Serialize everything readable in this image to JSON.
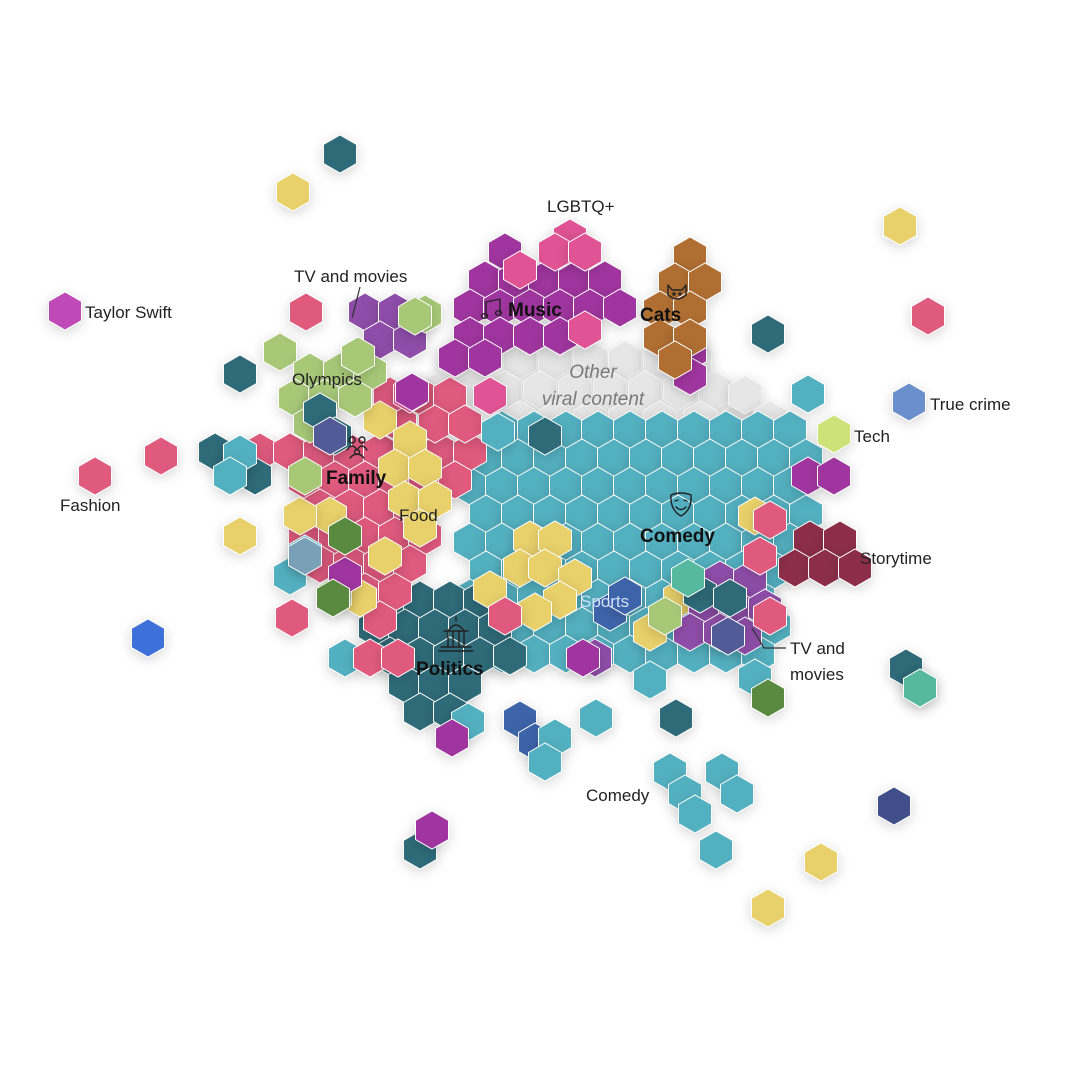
{
  "labels": {
    "lgbtq": "LGBTQ+",
    "tv_movies_top": "TV and movies",
    "music": "Music",
    "cats": "Cats",
    "taylor_swift": "Taylor Swift",
    "olympics": "Olympics",
    "other_line1": "Other",
    "other_line2": "viral content",
    "true_crime": "True crime",
    "tech": "Tech",
    "family": "Family",
    "fashion": "Fashion",
    "food": "Food",
    "comedy": "Comedy",
    "storytime": "Storytime",
    "sports": "Sports",
    "tv_movies_right_1": "TV and",
    "tv_movies_right_2": "movies",
    "politics": "Politics",
    "comedy_small": "Comedy"
  },
  "colors": {
    "music": "#a0349f",
    "lgbtq": "#e05394",
    "cats": "#b06e32",
    "tv_movies": "#8e4ea8",
    "olympics": "#a8c878",
    "family": "#e05a7d",
    "food": "#e8d06a",
    "comedy": "#52b0c0",
    "politics": "#2e6a78",
    "storytime": "#8c2f48",
    "sports": "#3d64a8",
    "true_crime": "#6a8fcc",
    "tech": "#cfe27a",
    "taylor_swift": "#c048b8",
    "other_viral": "#e6e6e6"
  },
  "icons": [
    "music-note-icon",
    "cat-icon",
    "family-icon",
    "comedy-mask-icon",
    "capitol-icon"
  ]
}
